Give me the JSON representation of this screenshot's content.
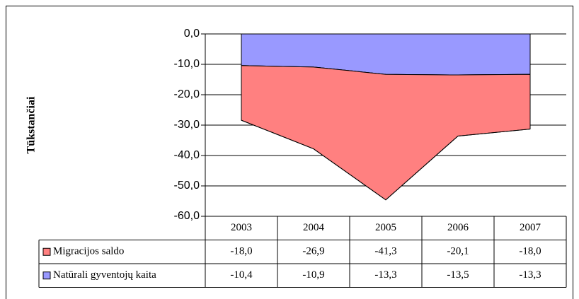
{
  "chart_data": {
    "type": "stacked_area",
    "y_axis_label": "Tūkstančiai",
    "categories": [
      "2003",
      "2004",
      "2005",
      "2006",
      "2007"
    ],
    "series": [
      {
        "name": "Migracijos saldo",
        "color": "#ff8080",
        "values": [
          -18.0,
          -26.9,
          -41.3,
          -20.1,
          -18.0
        ],
        "value_labels": [
          "-18,0",
          "-26,9",
          "-41,3",
          "-20,1",
          "-18,0"
        ]
      },
      {
        "name": "Natūrali gyventojų kaita",
        "color": "#9999ff",
        "values": [
          -10.4,
          -10.9,
          -13.3,
          -13.5,
          -13.3
        ],
        "value_labels": [
          "-10,4",
          "-10,9",
          "-13,3",
          "-13,5",
          "-13,3"
        ]
      }
    ],
    "ylim": [
      -60,
      0
    ],
    "yticks": [
      {
        "value": 0,
        "label": "0,0"
      },
      {
        "value": -10,
        "label": "-10,0"
      },
      {
        "value": -20,
        "label": "-20,0"
      },
      {
        "value": -30,
        "label": "-30,0"
      },
      {
        "value": -40,
        "label": "-40,0"
      },
      {
        "value": -50,
        "label": "-50,0"
      },
      {
        "value": -60,
        "label": "-60,0"
      }
    ],
    "grid": true
  }
}
